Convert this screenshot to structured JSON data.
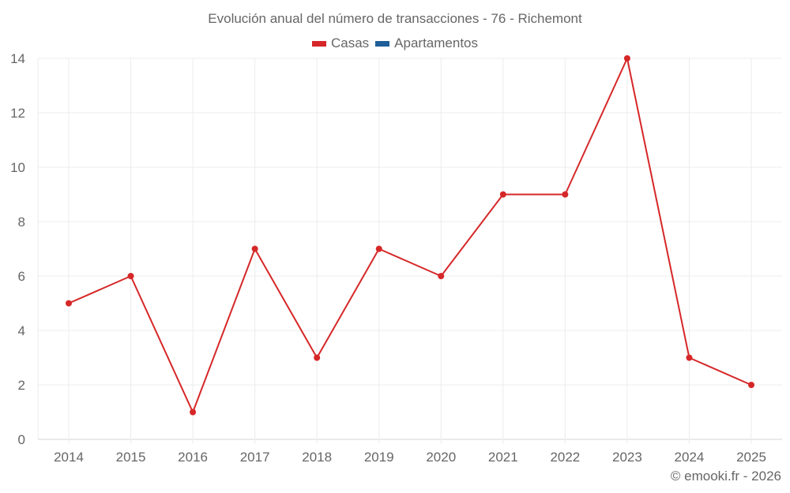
{
  "chart_data": {
    "type": "line",
    "title": "Evolución anual del número de transacciones - 76 - Richemont",
    "xlabel": "",
    "ylabel": "",
    "categories": [
      "2014",
      "2015",
      "2016",
      "2017",
      "2018",
      "2019",
      "2020",
      "2021",
      "2022",
      "2023",
      "2024",
      "2025"
    ],
    "series": [
      {
        "name": "Casas",
        "color": "#d62728",
        "values": [
          5,
          6,
          1,
          7,
          3,
          7,
          6,
          9,
          9,
          14,
          3,
          2
        ]
      },
      {
        "name": "Apartamentos",
        "color": "#1f5f99",
        "values": []
      }
    ],
    "ylim": [
      0,
      14
    ],
    "yticks": [
      0,
      2,
      4,
      6,
      8,
      10,
      12,
      14
    ],
    "grid": true,
    "legend_position": "top"
  },
  "legend": [
    {
      "label": "Casas",
      "color": "#d62728"
    },
    {
      "label": "Apartamentos",
      "color": "#1f5f99"
    }
  ],
  "footer": "© emooki.fr - 2026"
}
